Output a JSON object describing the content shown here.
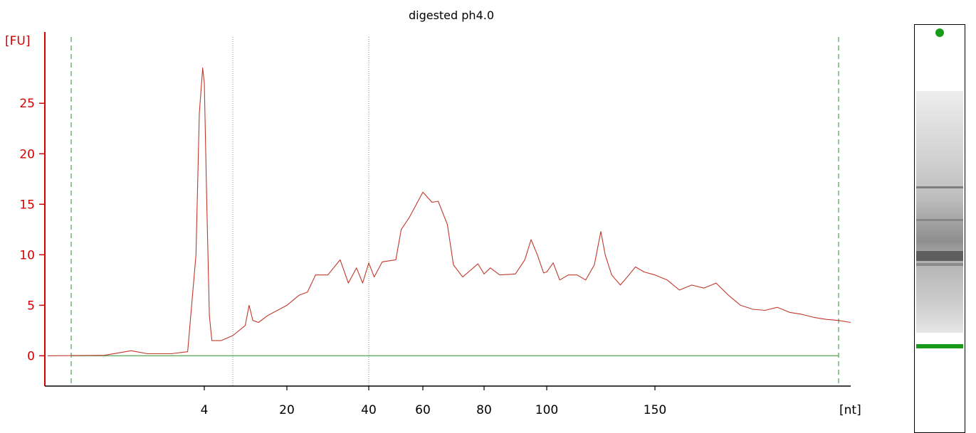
{
  "chart_data": {
    "type": "line",
    "title": "digested ph4.0",
    "ylabel": "[FU]",
    "xlabel": "[nt]",
    "ylim": [
      -3,
      31
    ],
    "y_ticks": [
      0,
      5,
      10,
      15,
      20,
      25
    ],
    "x_ticks": [
      {
        "label": "4",
        "value": 4
      },
      {
        "label": "20",
        "value": 20
      },
      {
        "label": "40",
        "value": 40
      },
      {
        "label": "60",
        "value": 60
      },
      {
        "label": "80",
        "value": 80
      },
      {
        "label": "100",
        "value": 100
      },
      {
        "label": "150",
        "value": 150
      }
    ],
    "x_axis_unit": "[nt]",
    "colors": {
      "trace": "#c0392b",
      "y_axis": "#d40000",
      "baseline": "#6ab06a",
      "marker_lines": "#2e8b2e",
      "grid_dotted": "#7a9a7a",
      "gel_marker": "#1a9a1a"
    },
    "series": [
      {
        "values": [
          [
            0.0,
            0.0
          ],
          [
            1.0,
            0.05
          ],
          [
            1.8,
            0.5
          ],
          [
            2.3,
            0.2
          ],
          [
            3.0,
            0.2
          ],
          [
            3.5,
            0.4
          ],
          [
            3.75,
            10
          ],
          [
            3.85,
            24
          ],
          [
            3.95,
            28.5
          ],
          [
            4.0,
            27
          ],
          [
            4.15,
            15
          ],
          [
            4.3,
            4
          ],
          [
            4.45,
            1.5
          ],
          [
            5.0,
            1.5
          ],
          [
            5.7,
            2.0
          ],
          [
            9.0,
            3.0
          ],
          [
            10.0,
            5.0
          ],
          [
            11.0,
            3.5
          ],
          [
            12.5,
            3.3
          ],
          [
            15.0,
            4.0
          ],
          [
            20.0,
            5.0
          ],
          [
            23.0,
            6.0
          ],
          [
            25.0,
            6.3
          ],
          [
            27.0,
            8.0
          ],
          [
            30.0,
            8.0
          ],
          [
            33.0,
            9.5
          ],
          [
            35.0,
            7.2
          ],
          [
            37.0,
            8.7
          ],
          [
            38.5,
            7.2
          ],
          [
            40.0,
            9.2
          ],
          [
            42.0,
            7.8
          ],
          [
            45.0,
            9.3
          ],
          [
            50.0,
            9.5
          ],
          [
            52.0,
            12.5
          ],
          [
            55.0,
            13.7
          ],
          [
            60.0,
            16.2
          ],
          [
            63.0,
            15.2
          ],
          [
            65.0,
            15.3
          ],
          [
            68.0,
            13.0
          ],
          [
            70.0,
            9.0
          ],
          [
            73.0,
            7.8
          ],
          [
            78.0,
            9.1
          ],
          [
            80.0,
            8.1
          ],
          [
            82.0,
            8.7
          ],
          [
            85.0,
            8.0
          ],
          [
            90.0,
            8.1
          ],
          [
            93.0,
            9.5
          ],
          [
            95.0,
            11.5
          ],
          [
            97.0,
            10.0
          ],
          [
            99.0,
            8.2
          ],
          [
            100.0,
            8.3
          ],
          [
            103.0,
            9.2
          ],
          [
            106.0,
            7.5
          ],
          [
            110.0,
            8.0
          ],
          [
            114.0,
            8.0
          ],
          [
            118.0,
            7.5
          ],
          [
            122.0,
            9.0
          ],
          [
            125.0,
            12.3
          ],
          [
            127.0,
            10.0
          ],
          [
            130.0,
            8.0
          ],
          [
            134.0,
            7.0
          ],
          [
            138.0,
            8.0
          ],
          [
            141.0,
            8.8
          ],
          [
            145.0,
            8.3
          ],
          [
            150.0,
            8.0
          ],
          [
            155.0,
            7.5
          ],
          [
            160.0,
            6.5
          ],
          [
            165.0,
            7.0
          ],
          [
            170.0,
            6.7
          ],
          [
            175.0,
            7.2
          ],
          [
            180.0,
            6.0
          ],
          [
            185.0,
            5.0
          ],
          [
            190.0,
            4.6
          ],
          [
            195.0,
            4.5
          ],
          [
            200.0,
            4.8
          ],
          [
            205.0,
            4.3
          ],
          [
            210.0,
            4.1
          ],
          [
            215.0,
            3.8
          ],
          [
            220.0,
            3.6
          ],
          [
            225.0,
            3.5
          ],
          [
            230.0,
            3.3
          ]
        ]
      }
    ]
  }
}
